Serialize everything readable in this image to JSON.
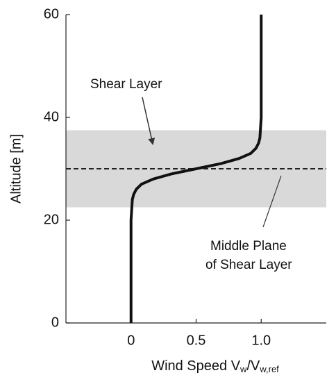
{
  "chart_data": {
    "type": "line",
    "xlabel": [
      "Wind Speed V",
      "w",
      "/V",
      "w,ref"
    ],
    "ylabel": "Altitude [m]",
    "xlim": [
      -0.5,
      1.5
    ],
    "ylim": [
      0,
      60
    ],
    "xticks": [
      0,
      0.5,
      {
        "value": 1,
        "label": "1.0"
      }
    ],
    "yticks": [
      0,
      20,
      40,
      60
    ],
    "shaded_band": [
      22.5,
      37.5
    ],
    "band_color": "#d9d9d9",
    "reference_line": 30,
    "series": [
      {
        "color": "#111111",
        "x": [
          0,
          0,
          0,
          0.01,
          0.02,
          0.04,
          0.08,
          0.17,
          0.31,
          0.5,
          0.69,
          0.83,
          0.92,
          0.96,
          0.98,
          0.99,
          1,
          1,
          1
        ],
        "y": [
          0,
          10,
          20,
          24,
          25,
          26,
          27,
          28,
          29,
          30,
          31,
          32,
          33,
          34,
          35,
          36,
          40,
          50,
          60
        ]
      }
    ],
    "annotations": [
      "Shear Layer",
      "Middle Plane",
      "of Shear Layer"
    ]
  }
}
